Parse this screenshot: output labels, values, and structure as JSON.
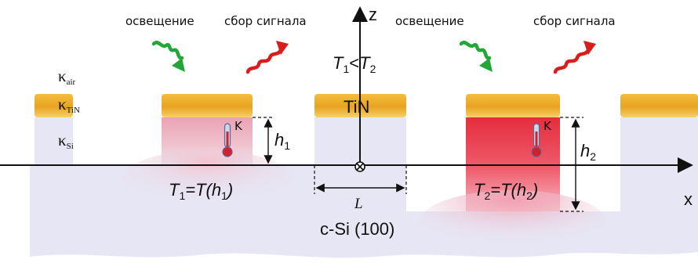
{
  "labels": {
    "illumination_left": "освещение",
    "signal_left": "сбор сигнала",
    "illumination_right": "освещение",
    "signal_right": "сбор сигнала",
    "z_axis": "z",
    "x_axis": "x",
    "temp_relation": {
      "t1": "T",
      "t1_sub": "1",
      "lt": "<",
      "t2": "T",
      "t2_sub": "2"
    },
    "tin": "TiN",
    "kappa_air": {
      "k": "κ",
      "sub": "air"
    },
    "kappa_tin": {
      "k": "κ",
      "sub": "TiN"
    },
    "kappa_si": {
      "k": "κ",
      "sub": "Si"
    },
    "thermo_left": "K",
    "thermo_right": "K",
    "h1": {
      "h": "h",
      "sub": "1"
    },
    "h2": {
      "h": "h",
      "sub": "2"
    },
    "T1_eq": {
      "a": "T",
      "a_sub": "1",
      "b": "=T(h",
      "b_sub": "1",
      "c": ")"
    },
    "T2_eq": {
      "a": "T",
      "a_sub": "2",
      "b": "=T(h",
      "b_sub": "2",
      "c": ")"
    },
    "L": "L",
    "substrate": "c-Si (100)"
  },
  "colors": {
    "gold": "#e8a321",
    "substrate": "#e7e6f4",
    "red_hot": "#e8323f",
    "pink": "#f4c6cf",
    "wave_green": "#23a637",
    "wave_red": "#d91c1c"
  }
}
